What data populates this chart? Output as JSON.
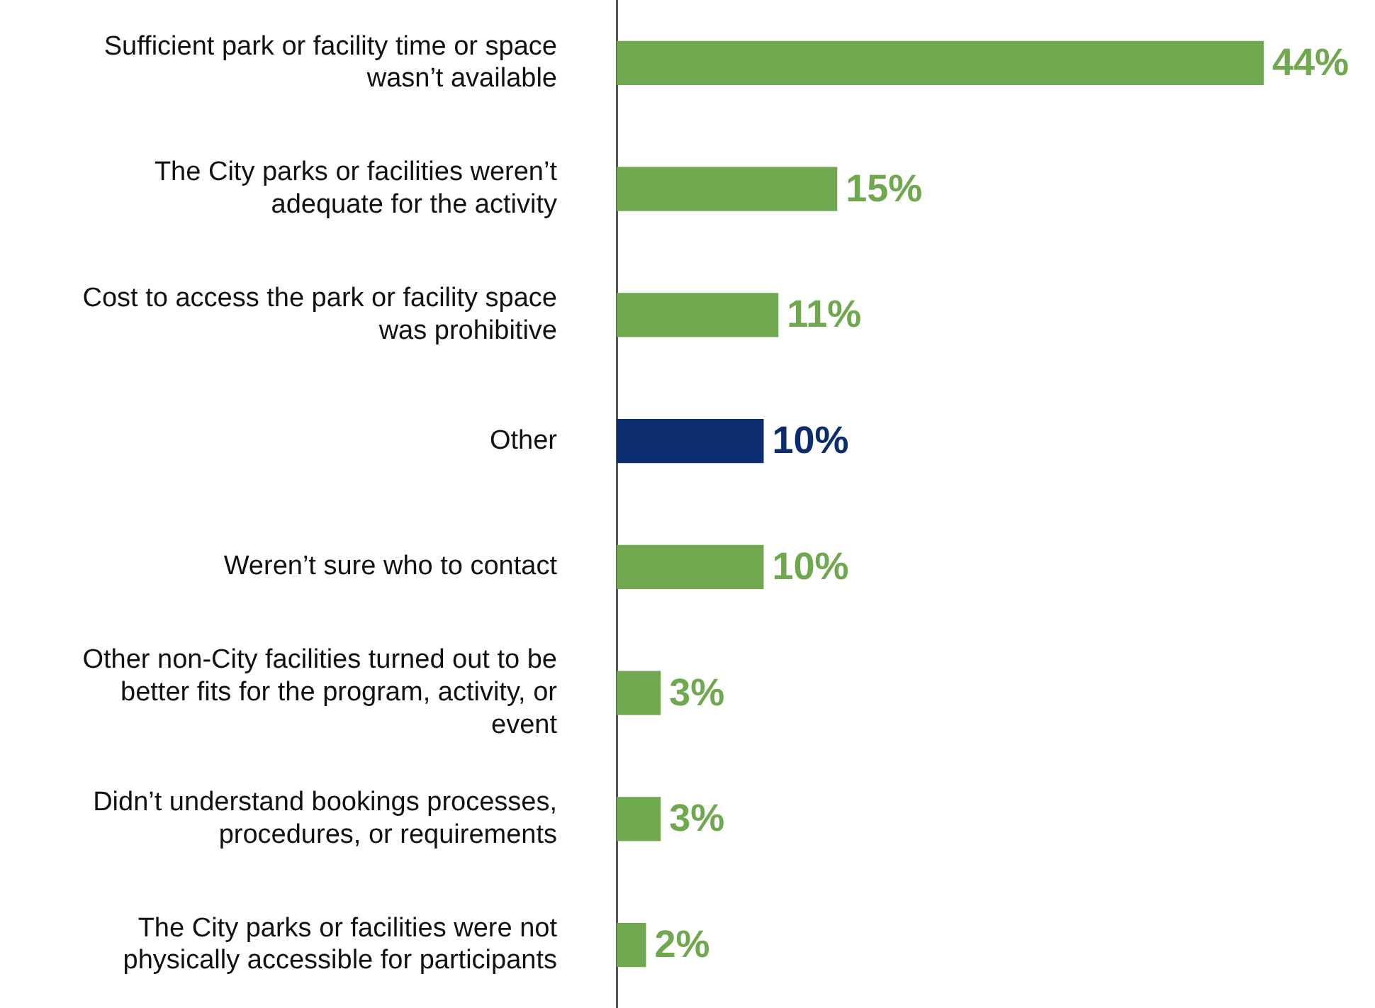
{
  "chart_data": {
    "type": "bar",
    "orientation": "horizontal",
    "categories": [
      "Sufficient park or facility time or space wasn’t available",
      "The City parks or facilities weren’t adequate for the activity",
      "Cost to access the park or facility space was prohibitive",
      "Other",
      "Weren’t sure who to contact",
      "Other non-City facilities turned out to be better fits for the program, activity, or event",
      "Didn’t understand bookings processes, procedures, or requirements",
      "The City parks or facilities were not physically accessible for participants"
    ],
    "values": [
      44,
      15,
      11,
      10,
      10,
      3,
      3,
      2
    ],
    "colors": [
      "#70a84f",
      "#70a84f",
      "#70a84f",
      "#0b2d6f",
      "#70a84f",
      "#70a84f",
      "#70a84f",
      "#70a84f"
    ],
    "value_labels": [
      "44%",
      "15%",
      "11%",
      "10%",
      "10%",
      "3%",
      "3%",
      "2%"
    ],
    "legend": false
  }
}
